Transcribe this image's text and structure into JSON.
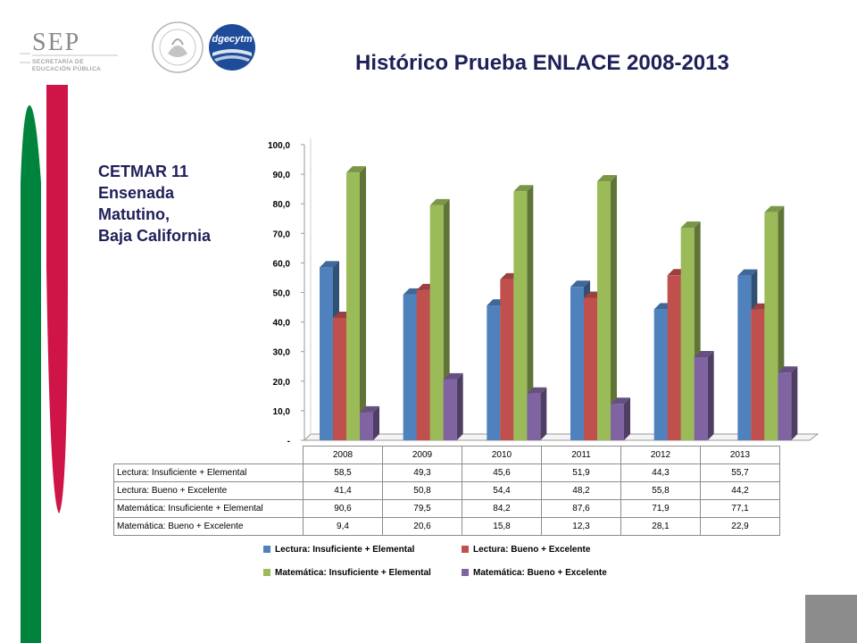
{
  "logos": {
    "sep_mark": "SEP",
    "sep_name": "SECRETARÍA DE EDUCACIÓN PÚBLICA",
    "seal_icon": "mexico-national-seal",
    "dgec_mark": "dgecytm"
  },
  "colors": {
    "title": "#1f1f5a",
    "green_stripe": "#00843d",
    "red_stripe": "#cf1547",
    "series": [
      "#4f81bd",
      "#c0504d",
      "#9bbb59",
      "#8064a2"
    ]
  },
  "school": {
    "line1": "CETMAR 11",
    "line2": "Ensenada",
    "line3": "Matutino,",
    "line4": "Baja California"
  },
  "chart_data": {
    "type": "bar",
    "title": "Histórico Prueba ENLACE 2008-2013",
    "categories": [
      "2008",
      "2009",
      "2010",
      "2011",
      "2012",
      "2013"
    ],
    "series": [
      {
        "name": "Lectura: Insuficiente + Elemental",
        "values": [
          58.5,
          49.3,
          45.6,
          51.9,
          44.3,
          55.7
        ],
        "color": "#4f81bd"
      },
      {
        "name": "Lectura: Bueno + Excelente",
        "values": [
          41.4,
          50.8,
          54.4,
          48.2,
          55.8,
          44.2
        ],
        "color": "#c0504d"
      },
      {
        "name": "Matemática: Insuficiente + Elemental",
        "values": [
          90.6,
          79.5,
          84.2,
          87.6,
          71.9,
          77.1
        ],
        "color": "#9bbb59"
      },
      {
        "name": "Matemática: Bueno + Excelente",
        "values": [
          9.4,
          20.6,
          15.8,
          12.3,
          28.1,
          22.9
        ],
        "color": "#8064a2"
      }
    ],
    "ylim": [
      0,
      100
    ],
    "yticks": [
      "-",
      "10,0",
      "20,0",
      "30,0",
      "40,0",
      "50,0",
      "60,0",
      "70,0",
      "80,0",
      "90,0",
      "100,0"
    ],
    "table_values": [
      [
        "58,5",
        "49,3",
        "45,6",
        "51,9",
        "44,3",
        "55,7"
      ],
      [
        "41,4",
        "50,8",
        "54,4",
        "48,2",
        "55,8",
        "44,2"
      ],
      [
        "90,6",
        "79,5",
        "84,2",
        "87,6",
        "71,9",
        "77,1"
      ],
      [
        "9,4",
        "20,6",
        "15,8",
        "12,3",
        "28,1",
        "22,9"
      ]
    ],
    "table_labels": [
      "Lectura: Insuficiente + Elemental",
      "Lectura: Bueno + Excelente",
      "Matemática: Insuficiente + Elemental",
      "Matemática: Bueno + Excelente"
    ],
    "legend": [
      "Lectura: Insuficiente + Elemental",
      "Lectura: Bueno + Excelente",
      "Matemática: Insuficiente + Elemental",
      "Matemática: Bueno + Excelente"
    ],
    "legend_position": "bottom",
    "grid": false
  }
}
